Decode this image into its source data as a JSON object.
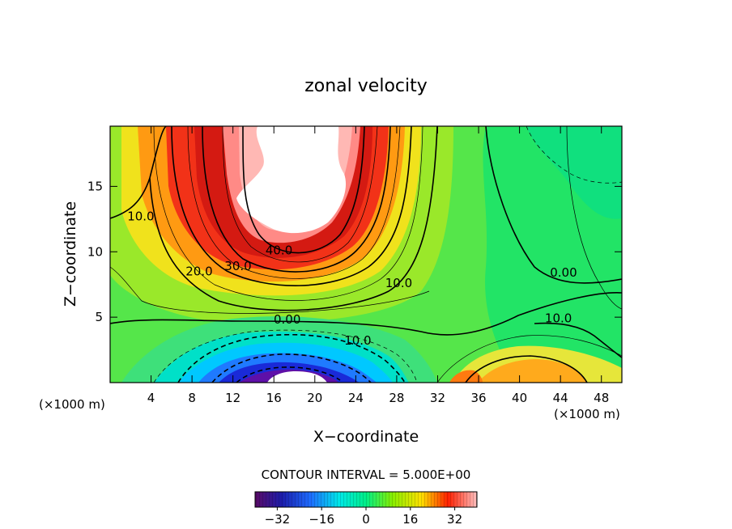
{
  "chart_data": {
    "type": "contour",
    "title": "zonal velocity",
    "xlabel": "X−coordinate",
    "ylabel": "Z−coordinate",
    "x_unit_left": "(×1000 m)",
    "x_unit_right": "(×1000 m)",
    "xlim": [
      0,
      50
    ],
    "ylim": [
      0,
      19.6
    ],
    "x_ticks": [
      4,
      8,
      12,
      16,
      20,
      24,
      28,
      32,
      36,
      40,
      44,
      48
    ],
    "y_ticks": [
      5,
      10,
      15
    ],
    "contour_interval_text": "CONTOUR INTERVAL = 5.000E+00",
    "contour_labels": [
      {
        "text": "40.0",
        "x": 16.5,
        "y": 9.8
      },
      {
        "text": "30.0",
        "x": 12.5,
        "y": 8.6
      },
      {
        "text": "20.0",
        "x": 8.7,
        "y": 8.2
      },
      {
        "text": "10.0",
        "x": 3.0,
        "y": 12.4
      },
      {
        "text": "10.0",
        "x": 28.2,
        "y": 7.3
      },
      {
        "text": "0.00",
        "x": 17.3,
        "y": 4.5
      },
      {
        "text": "10.0",
        "x": 24.2,
        "y": 2.9
      },
      {
        "text": "0.00",
        "x": 44.3,
        "y": 8.1
      },
      {
        "text": "10.0",
        "x": 43.8,
        "y": 4.6
      }
    ],
    "colorbar": {
      "range": [
        -40,
        40
      ],
      "tick_values": [
        -32,
        -16,
        0,
        16,
        32
      ],
      "tick_labels": [
        "−32",
        "−16",
        "0",
        "16",
        "32"
      ]
    }
  }
}
